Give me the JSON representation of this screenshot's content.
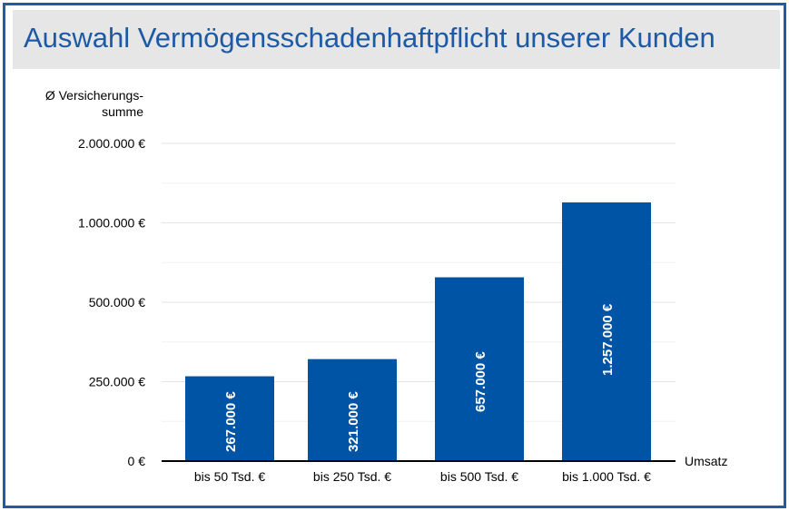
{
  "title": "Auswahl Vermögensschadenhaftpflicht unserer Kunden",
  "colors": {
    "bar": "#0054a6",
    "frame": "#1f5ba8",
    "title": "#1c5aa6",
    "title_bg": "#e6e6e6",
    "grid": "#e3e3e3"
  },
  "chart_data": {
    "type": "bar",
    "title": "Auswahl Vermögensschadenhaftpflicht unserer Kunden",
    "ylabel_lines": [
      "Ø Versicherungs-",
      "summe"
    ],
    "xlabel": "Umsatz",
    "categories": [
      "bis 50 Tsd. €",
      "bis 250 Tsd. €",
      "bis 500 Tsd. €",
      "bis 1.000 Tsd. €"
    ],
    "values": [
      267000,
      321000,
      657000,
      1257000
    ],
    "value_labels": [
      "267.000 €",
      "321.000 €",
      "657.000 €",
      "1.257.000 €"
    ],
    "y_scale": "piecewise",
    "y_ticks": [
      {
        "value": 0,
        "label": "0 €"
      },
      {
        "value": 250000,
        "label": "250.000 €"
      },
      {
        "value": 500000,
        "label": "500.000 €"
      },
      {
        "value": 1000000,
        "label": "1.000.000 €"
      },
      {
        "value": 2000000,
        "label": "2.000.000 €"
      }
    ],
    "ylim": [
      0,
      2000000
    ],
    "grid": true,
    "legend": "none"
  }
}
